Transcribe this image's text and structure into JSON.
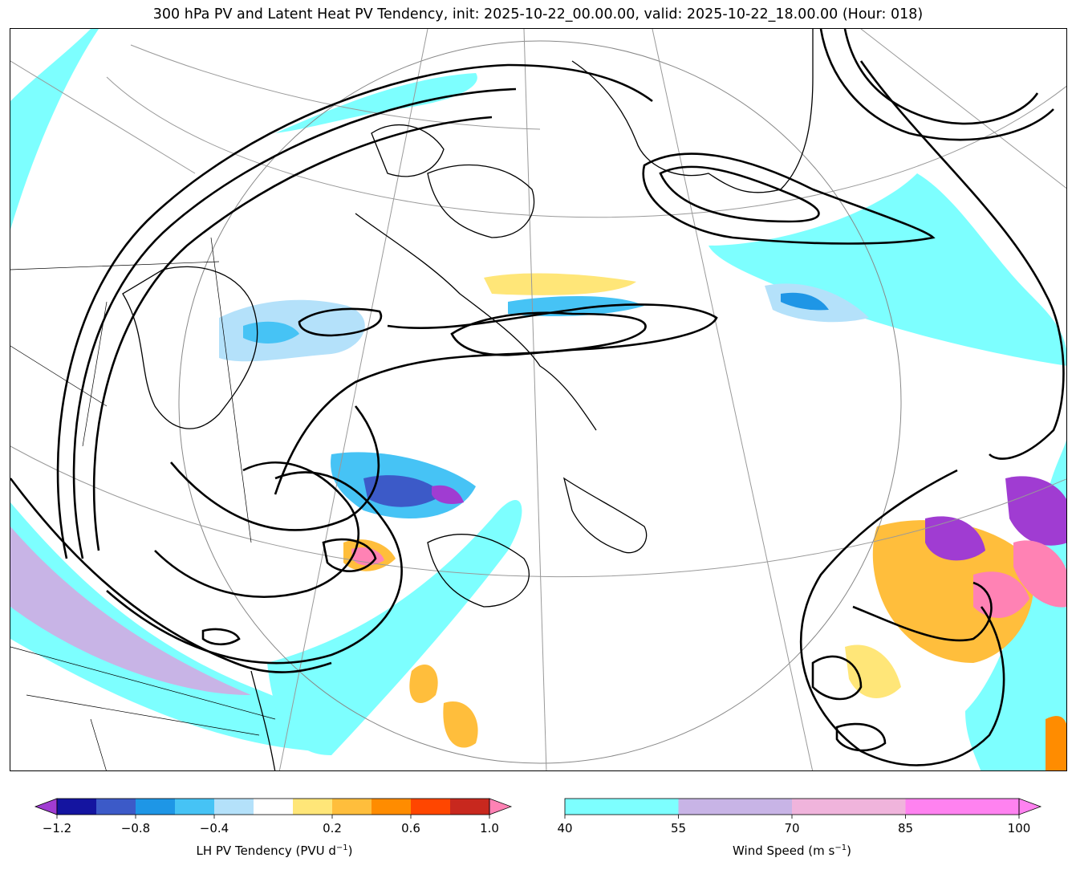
{
  "title": "300 hPa PV and Latent Heat PV Tendency, init: 2025-10-22_00.00.00, valid: 2025-10-22_18.00.00 (Hour: 018)",
  "colorbar_left": {
    "label": "LH PV Tendency (PVU d",
    "label_exp": "−1",
    "label_close": ")",
    "tick_labels": [
      "−1.2",
      "−0.8",
      "−0.4",
      "0.2",
      "0.6",
      "1.0"
    ],
    "under_color": "#a03cd2",
    "colors": [
      "#1414a0",
      "#3c5ac8",
      "#1e96e6",
      "#46c3f5",
      "#b4e1fa",
      "#ffffff",
      "#ffe678",
      "#ffbe3c",
      "#ff8c00",
      "#ff4600",
      "#c8281e"
    ],
    "over_color": "#ff82b4"
  },
  "colorbar_right": {
    "label": "Wind Speed (m s",
    "label_exp": "−1",
    "label_close": ")",
    "tick_labels": [
      "40",
      "55",
      "70",
      "85",
      "100"
    ],
    "colors": [
      "#7dffff",
      "#c8b4e6",
      "#f0b4dc",
      "#ff82f0"
    ],
    "over_color": "#ff82f0"
  }
}
